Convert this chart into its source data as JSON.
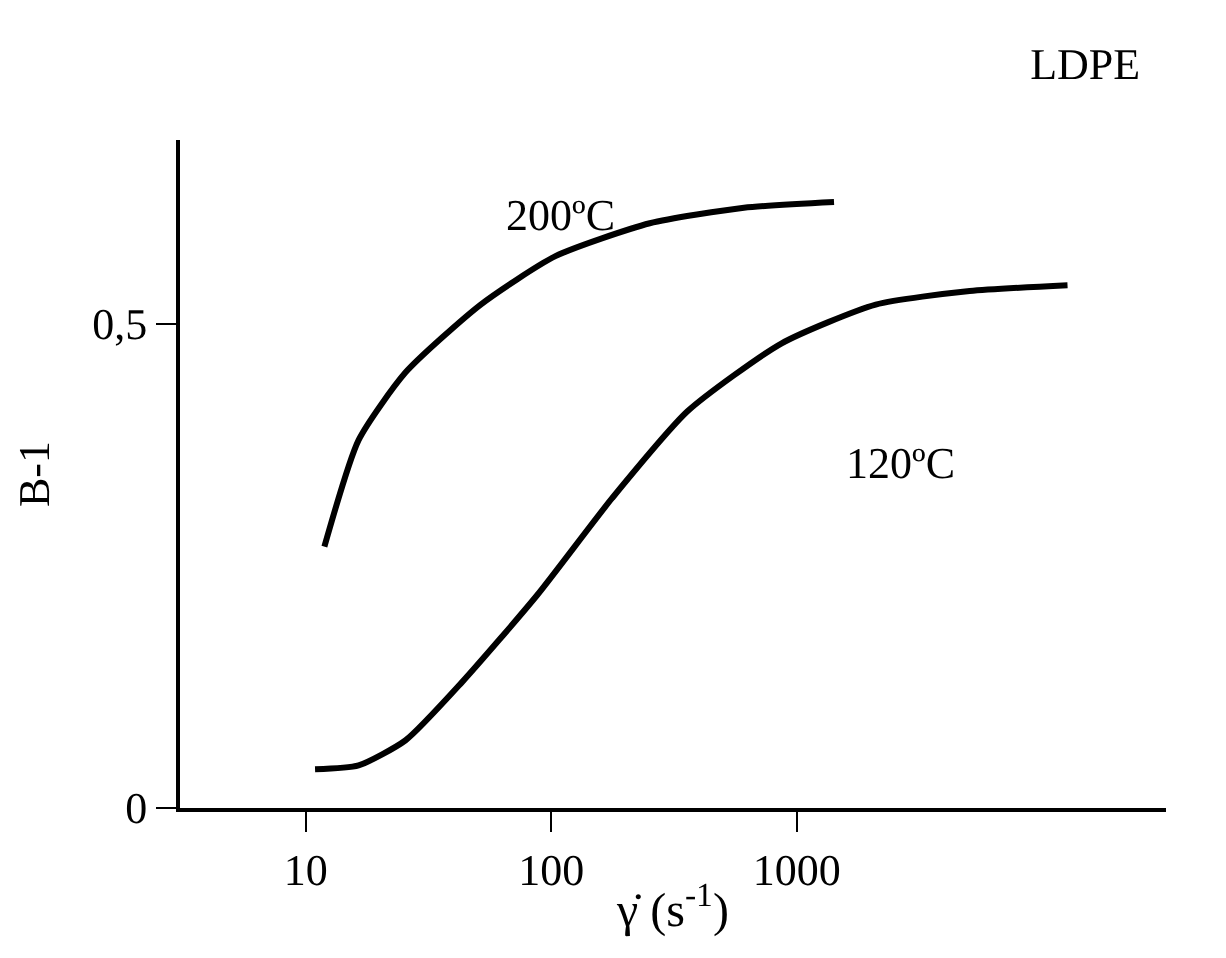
{
  "chart_data": {
    "type": "line",
    "title": "LDPE",
    "xlabel": "γ̇ (s$^{-1}$)",
    "ylabel": "B-1",
    "log": "x",
    "xlim": [
      3.07,
      32000
    ],
    "ylim": [
      0,
      0.69
    ],
    "xticks": [
      10,
      100,
      1000
    ],
    "yticks": [
      0,
      {
        "value": 0.5,
        "label": "0,5"
      }
    ],
    "legend": false,
    "marker": "none",
    "line_style": "solid",
    "series": [
      {
        "name": "200ºC",
        "color": "#000000",
        "x": [
          11.9,
          16.4,
          25.5,
          51.6,
          104,
          252,
          610,
          1420
        ],
        "values": [
          0.27,
          0.38,
          0.45,
          0.52,
          0.57,
          0.604,
          0.62,
          0.626
        ]
      },
      {
        "name": "120ºC",
        "color": "#000000",
        "x": [
          10.9,
          16.4,
          25.5,
          43.3,
          87.7,
          177,
          360,
          869,
          2100,
          5070,
          12700
        ],
        "values": [
          0.04,
          0.044,
          0.07,
          0.13,
          0.22,
          0.32,
          0.41,
          0.48,
          0.52,
          0.534,
          0.54
        ]
      }
    ]
  }
}
